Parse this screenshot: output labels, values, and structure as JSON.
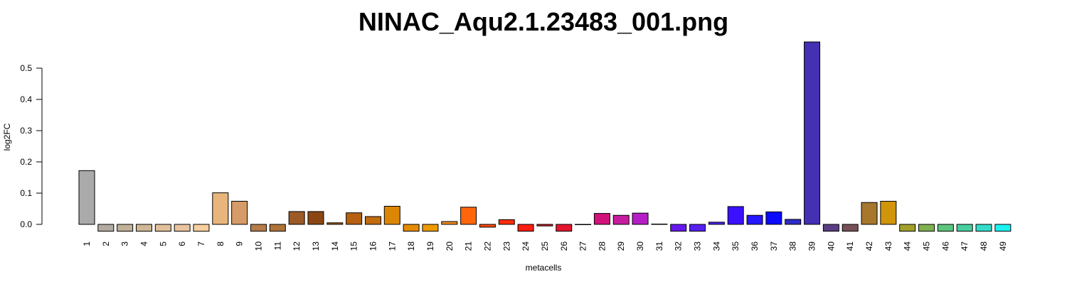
{
  "chart_data": {
    "type": "bar",
    "title": "NINAC_Aqu2.1.23483_001.png",
    "xlabel": "metacells",
    "ylabel": "log2FC",
    "ylim": [
      -0.025,
      0.59
    ],
    "yticks": [
      "0.0",
      "0.1",
      "0.2",
      "0.3",
      "0.4",
      "0.5"
    ],
    "grid": false,
    "categories": [
      "1",
      "2",
      "3",
      "4",
      "5",
      "6",
      "7",
      "8",
      "9",
      "10",
      "11",
      "12",
      "13",
      "14",
      "15",
      "16",
      "17",
      "18",
      "19",
      "20",
      "21",
      "22",
      "23",
      "24",
      "25",
      "26",
      "27",
      "28",
      "29",
      "30",
      "31",
      "32",
      "33",
      "34",
      "35",
      "36",
      "37",
      "38",
      "39",
      "40",
      "41",
      "42",
      "43",
      "44",
      "45",
      "46",
      "47",
      "48",
      "49"
    ],
    "values": [
      0.172,
      -0.022,
      -0.022,
      -0.022,
      -0.022,
      -0.022,
      -0.022,
      0.101,
      0.074,
      -0.022,
      -0.022,
      0.041,
      0.041,
      0.005,
      0.037,
      0.025,
      0.058,
      -0.022,
      -0.022,
      0.009,
      0.055,
      -0.009,
      0.015,
      -0.022,
      -0.005,
      -0.022,
      0.0,
      0.035,
      0.029,
      0.036,
      0.001,
      -0.022,
      -0.022,
      0.007,
      0.057,
      0.029,
      0.04,
      0.016,
      0.584,
      -0.022,
      -0.022,
      0.07,
      0.074,
      -0.022,
      -0.022,
      -0.022,
      -0.022,
      -0.022,
      -0.022
    ],
    "colors": [
      "#AAAAAA",
      "#B3ABA1",
      "#C1B199",
      "#D0B896",
      "#E2C09B",
      "#EAC39E",
      "#F7CE9E",
      "#E8B57C",
      "#D69B69",
      "#B67C4A",
      "#AF733A",
      "#9B5A26",
      "#8B4614",
      "#A35F19",
      "#B56110",
      "#C26C10",
      "#DC8605",
      "#E58B02",
      "#EC9A00",
      "#F58C1B",
      "#FF650A",
      "#FA4A0F",
      "#FF2E0A",
      "#F91E11",
      "#E3171E",
      "#E5152E",
      "#DB0F54",
      "#D2127B",
      "#C81C9E",
      "#B51DC6",
      "#7B1EDD",
      "#6617EC",
      "#5820EF",
      "#5020FF",
      "#3C10FF",
      "#2517FF",
      "#0A0AFF",
      "#2E2CC6",
      "#4330B3",
      "#5A3E85",
      "#775056",
      "#A7772D",
      "#D1950B",
      "#A1A02B",
      "#7FB150",
      "#5DC57E",
      "#48CE9E",
      "#34DCC8",
      "#1AF2F2"
    ]
  }
}
